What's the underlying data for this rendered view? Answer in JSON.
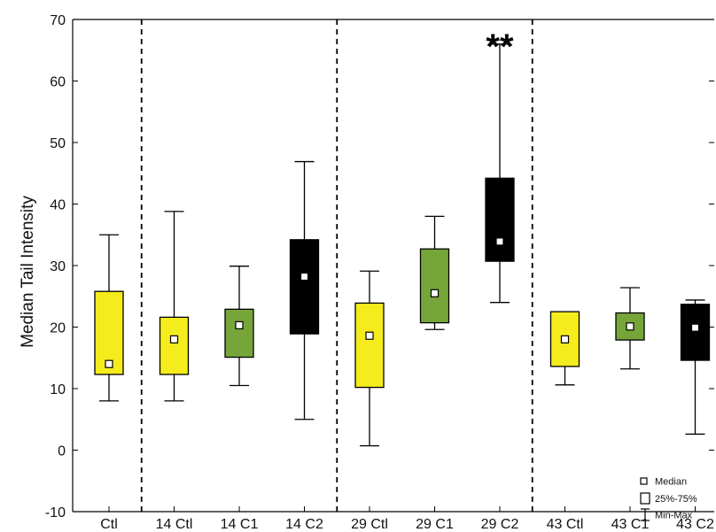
{
  "chart_data": {
    "type": "box",
    "ylabel": "Median Tail Intensity",
    "ylim": [
      -10,
      70
    ],
    "yticks": [
      -10,
      0,
      10,
      20,
      30,
      40,
      50,
      60,
      70
    ],
    "categories": [
      "Ctl",
      "14 Ctl",
      "14 C1",
      "14 C2",
      "29 Ctl",
      "29 C1",
      "29 C2",
      "43 Ctl",
      "43 C1",
      "43 C2"
    ],
    "groups_separated_after": [
      "Ctl",
      "14 C2",
      "29 C2"
    ],
    "boxes": [
      {
        "label": "Ctl",
        "min": 8,
        "q1": 12.3,
        "median": 14,
        "q3": 25.8,
        "max": 35,
        "color": "#f4ec1c"
      },
      {
        "label": "14 Ctl",
        "min": 8,
        "q1": 12.3,
        "median": 18,
        "q3": 21.6,
        "max": 38.8,
        "color": "#f4ec1c"
      },
      {
        "label": "14 C1",
        "min": 10.5,
        "q1": 15.1,
        "median": 20.3,
        "q3": 22.9,
        "max": 29.9,
        "color": "#76a63a"
      },
      {
        "label": "14 C2",
        "min": 5,
        "q1": 18.9,
        "median": 28.2,
        "q3": 34.2,
        "max": 46.9,
        "color": "#000000"
      },
      {
        "label": "29 Ctl",
        "min": 0.7,
        "q1": 10.2,
        "median": 18.6,
        "q3": 23.9,
        "max": 29.1,
        "color": "#f4ec1c"
      },
      {
        "label": "29 C1",
        "min": 19.6,
        "q1": 20.7,
        "median": 25.5,
        "q3": 32.7,
        "max": 38,
        "color": "#76a63a"
      },
      {
        "label": "29 C2",
        "min": 24,
        "q1": 30.7,
        "median": 33.9,
        "q3": 44.2,
        "max": 66,
        "color": "#000000"
      },
      {
        "label": "43 Ctl",
        "min": 10.6,
        "q1": 13.6,
        "median": 18,
        "q3": 22.5,
        "max": 22.5,
        "color": "#f4ec1c"
      },
      {
        "label": "43 C1",
        "min": 13.2,
        "q1": 17.9,
        "median": 20.1,
        "q3": 22.3,
        "max": 26.4,
        "color": "#76a63a"
      },
      {
        "label": "43 C2",
        "min": 2.6,
        "q1": 14.6,
        "median": 19.9,
        "q3": 23.7,
        "max": 24.4,
        "color": "#000000"
      }
    ],
    "annotations": [
      {
        "text": "**",
        "category": "29 C2"
      }
    ],
    "legend": {
      "position": "bottom-right",
      "items": [
        {
          "symbol": "median-marker",
          "label": "Median"
        },
        {
          "symbol": "box",
          "label": "25%-75%"
        },
        {
          "symbol": "whisker",
          "label": "Min-Max"
        }
      ]
    },
    "grid": false
  }
}
